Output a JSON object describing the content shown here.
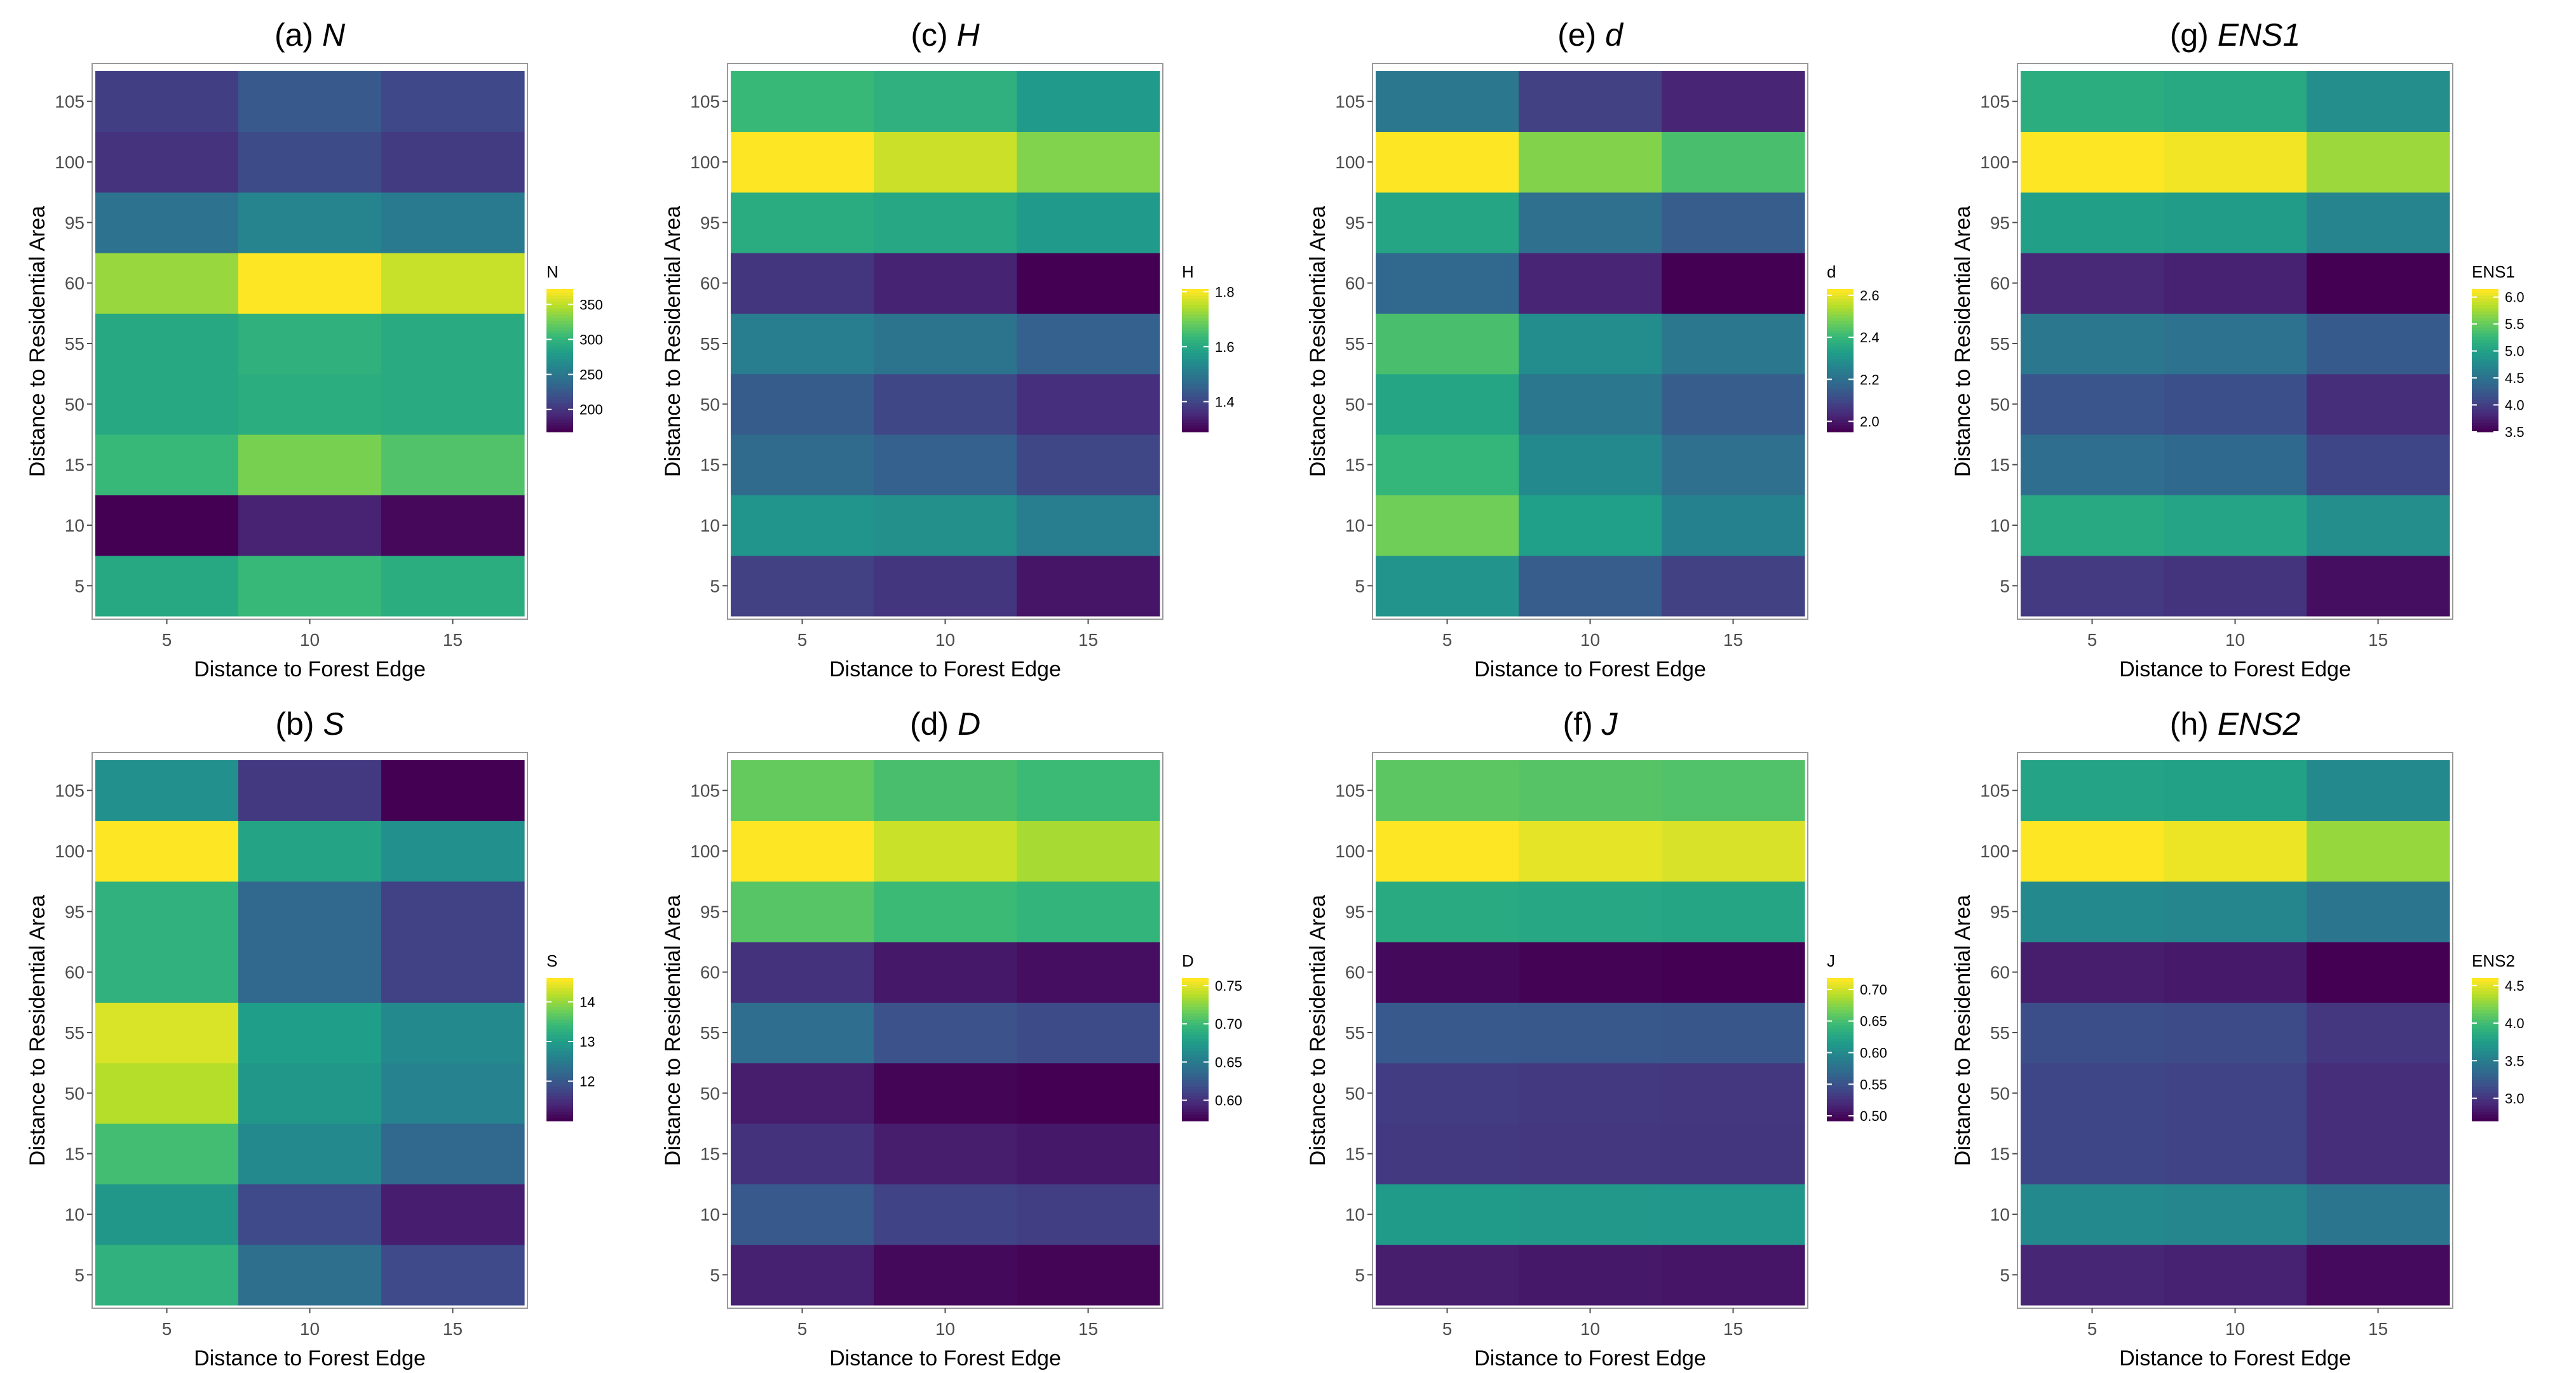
{
  "colors": {
    "viridis": [
      "#440154",
      "#482878",
      "#3e4a89",
      "#31688e",
      "#26828e",
      "#1f9e89",
      "#35b779",
      "#6ece58",
      "#b5de2b",
      "#fde725"
    ],
    "frame": "#9a9a9a",
    "text": "#000000",
    "tick_text": "#4d4d4d"
  },
  "chart_data": [
    {
      "id": "a",
      "type": "heatmap",
      "title_prefix": "(a) ",
      "title_symbol": "N",
      "xlabel": "Distance to Forest Edge",
      "ylabel": "Distance to Residential Area",
      "x": [
        "5",
        "10",
        "15"
      ],
      "y": [
        "5",
        "10",
        "15",
        "50",
        "55",
        "60",
        "95",
        "100",
        "105"
      ],
      "values": [
        [
          290,
          305,
          295
        ],
        [
          168,
          188,
          172
        ],
        [
          305,
          330,
          315
        ],
        [
          290,
          295,
          292
        ],
        [
          290,
          298,
          292
        ],
        [
          340,
          372,
          355
        ],
        [
          245,
          260,
          252
        ],
        [
          198,
          214,
          203
        ],
        [
          205,
          225,
          212
        ]
      ],
      "legend": {
        "title": "N",
        "ticks": [
          200,
          250,
          300,
          350
        ],
        "min": 168,
        "max": 372
      }
    },
    {
      "id": "b",
      "type": "heatmap",
      "title_prefix": "(b) ",
      "title_symbol": "S",
      "xlabel": "Distance to Forest Edge",
      "ylabel": "Distance to Residential Area",
      "x": [
        "5",
        "10",
        "15"
      ],
      "y": [
        "5",
        "10",
        "15",
        "50",
        "55",
        "60",
        "95",
        "100",
        "105"
      ],
      "values": [
        [
          13.3,
          12.3,
          11.8
        ],
        [
          12.9,
          11.8,
          11.3
        ],
        [
          13.5,
          12.7,
          12.2
        ],
        [
          14.2,
          12.9,
          12.6
        ],
        [
          14.4,
          13.0,
          12.7
        ],
        [
          13.3,
          12.2,
          11.7
        ],
        [
          13.3,
          12.2,
          11.7
        ],
        [
          14.6,
          13.1,
          12.8
        ],
        [
          12.8,
          11.6,
          11.0
        ]
      ],
      "legend": {
        "title": "S",
        "ticks": [
          12,
          13,
          14
        ],
        "min": 11.0,
        "max": 14.6
      }
    },
    {
      "id": "c",
      "type": "heatmap",
      "title_prefix": "(c) ",
      "title_symbol": "H",
      "xlabel": "Distance to Forest Edge",
      "ylabel": "Distance to Residential Area",
      "x": [
        "5",
        "10",
        "15"
      ],
      "y": [
        "5",
        "10",
        "15",
        "50",
        "55",
        "60",
        "95",
        "100",
        "105"
      ],
      "values": [
        [
          1.39,
          1.37,
          1.32
        ],
        [
          1.56,
          1.55,
          1.51
        ],
        [
          1.47,
          1.45,
          1.4
        ],
        [
          1.44,
          1.4,
          1.36
        ],
        [
          1.51,
          1.49,
          1.45
        ],
        [
          1.37,
          1.34,
          1.29
        ],
        [
          1.61,
          1.6,
          1.57
        ],
        [
          1.81,
          1.77,
          1.71
        ],
        [
          1.64,
          1.62,
          1.57
        ]
      ],
      "legend": {
        "title": "H",
        "ticks": [
          1.4,
          1.6,
          1.8
        ],
        "min": 1.29,
        "max": 1.81
      }
    },
    {
      "id": "d",
      "type": "heatmap",
      "title_prefix": "(d) ",
      "title_symbol": "D",
      "xlabel": "Distance to Forest Edge",
      "ylabel": "Distance to Residential Area",
      "x": [
        "5",
        "10",
        "15"
      ],
      "y": [
        "5",
        "10",
        "15",
        "50",
        "55",
        "60",
        "95",
        "100",
        "105"
      ],
      "values": [
        [
          0.59,
          0.577,
          0.575
        ],
        [
          0.625,
          0.61,
          0.607
        ],
        [
          0.6,
          0.588,
          0.585
        ],
        [
          0.588,
          0.575,
          0.573
        ],
        [
          0.64,
          0.62,
          0.615
        ],
        [
          0.6,
          0.585,
          0.58
        ],
        [
          0.71,
          0.7,
          0.695
        ],
        [
          0.76,
          0.745,
          0.735
        ],
        [
          0.715,
          0.705,
          0.7
        ]
      ],
      "legend": {
        "title": "D",
        "ticks": [
          0.6,
          0.65,
          0.7,
          0.75
        ],
        "tick_labels": [
          "0.60",
          "0.65",
          "0.70",
          "0.75"
        ],
        "min": 0.573,
        "max": 0.76
      }
    },
    {
      "id": "e",
      "type": "heatmap",
      "title_prefix": "(e) ",
      "title_symbol": "d",
      "xlabel": "Distance to Forest Edge",
      "ylabel": "Distance to Residential Area",
      "x": [
        "5",
        "10",
        "15"
      ],
      "y": [
        "5",
        "10",
        "15",
        "50",
        "55",
        "60",
        "95",
        "100",
        "105"
      ],
      "values": [
        [
          2.3,
          2.15,
          2.08
        ],
        [
          2.48,
          2.33,
          2.25
        ],
        [
          2.4,
          2.27,
          2.2
        ],
        [
          2.35,
          2.22,
          2.15
        ],
        [
          2.43,
          2.28,
          2.22
        ],
        [
          2.18,
          2.02,
          1.95
        ],
        [
          2.35,
          2.2,
          2.15
        ],
        [
          2.63,
          2.5,
          2.43
        ],
        [
          2.22,
          2.08,
          2.02
        ]
      ],
      "legend": {
        "title": "d",
        "ticks": [
          2.0,
          2.2,
          2.4,
          2.6
        ],
        "tick_labels": [
          "2.0",
          "2.2",
          "2.4",
          "2.6"
        ],
        "min": 1.95,
        "max": 2.63
      }
    },
    {
      "id": "f",
      "type": "heatmap",
      "title_prefix": "(f) ",
      "title_symbol": "J",
      "xlabel": "Distance to Forest Edge",
      "ylabel": "Distance to Residential Area",
      "x": [
        "5",
        "10",
        "15"
      ],
      "y": [
        "5",
        "10",
        "15",
        "50",
        "55",
        "60",
        "95",
        "100",
        "105"
      ],
      "values": [
        [
          0.51,
          0.507,
          0.505
        ],
        [
          0.615,
          0.612,
          0.61
        ],
        [
          0.53,
          0.528,
          0.527
        ],
        [
          0.532,
          0.53,
          0.528
        ],
        [
          0.555,
          0.553,
          0.552
        ],
        [
          0.497,
          0.493,
          0.492
        ],
        [
          0.63,
          0.627,
          0.625
        ],
        [
          0.718,
          0.71,
          0.705
        ],
        [
          0.66,
          0.657,
          0.655
        ]
      ],
      "legend": {
        "title": "J",
        "ticks": [
          0.5,
          0.55,
          0.6,
          0.65,
          0.7
        ],
        "tick_labels": [
          "0.50",
          "0.55",
          "0.60",
          "0.65",
          "0.70"
        ],
        "min": 0.492,
        "max": 0.718
      }
    },
    {
      "id": "g",
      "type": "heatmap",
      "title_prefix": "(g) ",
      "title_symbol": "ENS1",
      "xlabel": "Distance to Forest Edge",
      "ylabel": "Distance to Residential Area",
      "x": [
        "5",
        "10",
        "15"
      ],
      "y": [
        "5",
        "10",
        "15",
        "50",
        "55",
        "60",
        "95",
        "100",
        "105"
      ],
      "values": [
        [
          3.95,
          3.9,
          3.6
        ],
        [
          5.1,
          5.05,
          4.8
        ],
        [
          4.45,
          4.4,
          4.05
        ],
        [
          4.2,
          4.15,
          3.85
        ],
        [
          4.55,
          4.5,
          4.25
        ],
        [
          3.8,
          3.75,
          3.5
        ],
        [
          5.0,
          4.95,
          4.7
        ],
        [
          6.15,
          6.1,
          5.75
        ],
        [
          5.15,
          5.1,
          4.8
        ]
      ],
      "legend": {
        "title": "ENS1",
        "ticks": [
          3.5,
          4.0,
          4.5,
          5.0,
          5.5,
          6.0
        ],
        "tick_labels": [
          "3.5",
          "4.0",
          "4.5",
          "5.0",
          "5.5",
          "6.0"
        ],
        "min": 3.5,
        "max": 6.15
      }
    },
    {
      "id": "h",
      "type": "heatmap",
      "title_prefix": "(h) ",
      "title_symbol": "ENS2",
      "xlabel": "Distance to Forest Edge",
      "ylabel": "Distance to Residential Area",
      "x": [
        "5",
        "10",
        "15"
      ],
      "y": [
        "5",
        "10",
        "15",
        "50",
        "55",
        "60",
        "95",
        "100",
        "105"
      ],
      "values": [
        [
          2.9,
          2.88,
          2.75
        ],
        [
          3.6,
          3.58,
          3.45
        ],
        [
          3.1,
          3.08,
          2.95
        ],
        [
          3.1,
          3.08,
          2.95
        ],
        [
          3.15,
          3.13,
          3.0
        ],
        [
          2.85,
          2.83,
          2.7
        ],
        [
          3.6,
          3.58,
          3.45
        ],
        [
          4.6,
          4.55,
          4.3
        ],
        [
          3.8,
          3.78,
          3.6
        ]
      ],
      "legend": {
        "title": "ENS2",
        "ticks": [
          3.0,
          3.5,
          4.0,
          4.5
        ],
        "tick_labels": [
          "3.0",
          "3.5",
          "4.0",
          "4.5"
        ],
        "min": 2.7,
        "max": 4.6
      }
    }
  ]
}
